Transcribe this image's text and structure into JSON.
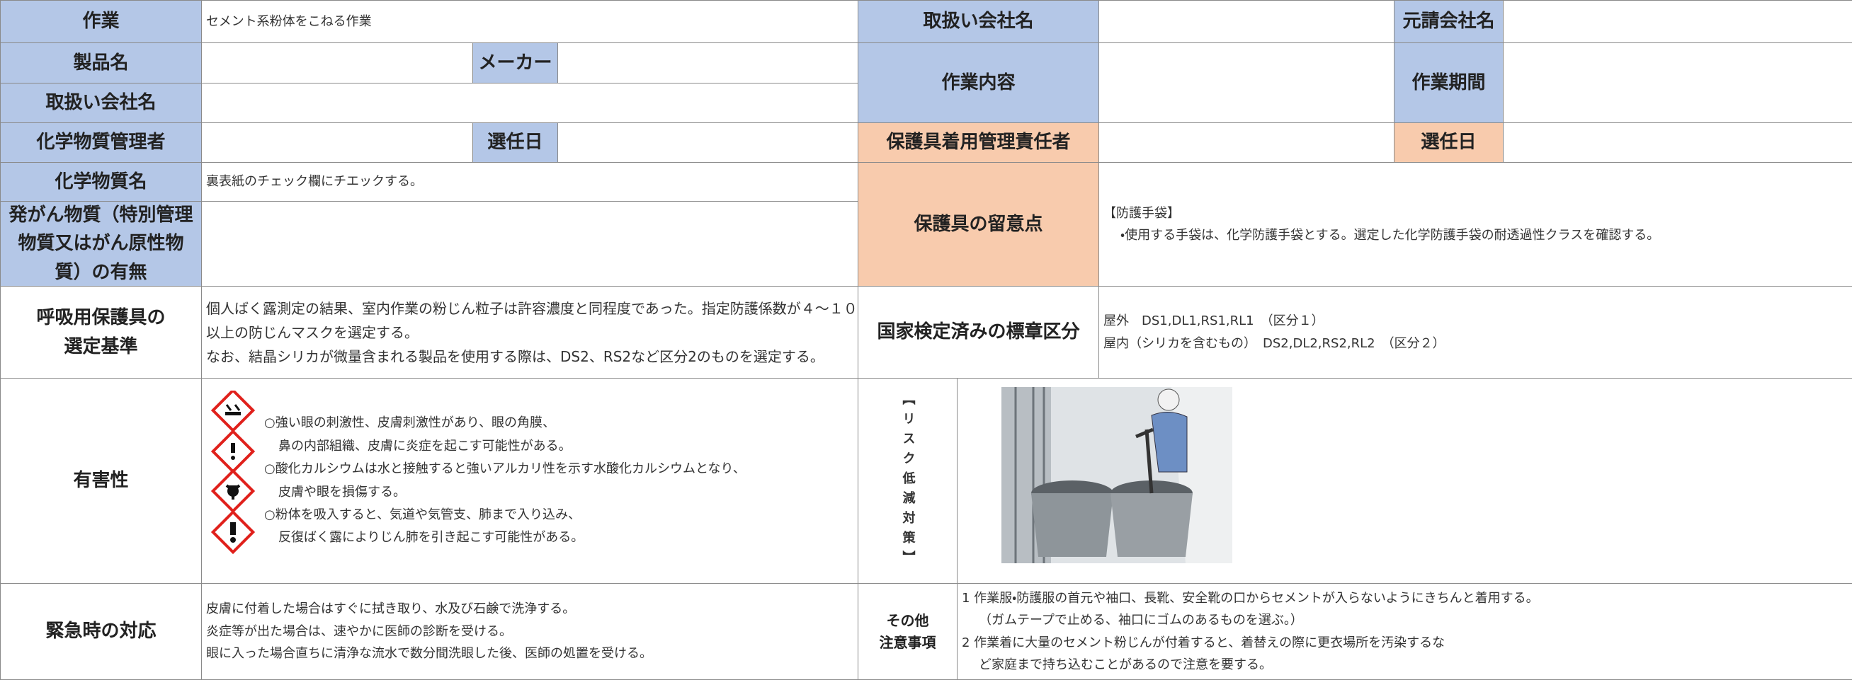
{
  "form": {
    "work": {
      "label": "作業",
      "value": "セメント系粉体をこねる作業"
    },
    "product": {
      "label": "製品名"
    },
    "maker": {
      "label": "メーカー"
    },
    "handling_company": {
      "label": "取扱い会社名"
    },
    "chem_manager": {
      "label": "化学物質管理者"
    },
    "appointment_date": {
      "label": "選任日"
    },
    "chem_name": {
      "label": "化学物質名",
      "value": "裏表紙のチェック欄にチエックする。"
    },
    "carcinogen": {
      "label": [
        "発がん物質（特別管理",
        "物質又はがん原性物",
        "質）の有無"
      ]
    },
    "respirator": {
      "label": [
        "呼吸用保護具の",
        "選定基準"
      ],
      "lines": [
        "個人ばく露測定の結果、室内作業の粉じん粒子は許容濃度と同程度であった。指定防護係数が４～１０",
        "以上の防じんマスクを選定する。",
        "なお、結晶シリカが微量含まれる製品を使用する際は、DS2、RS2など区分2のものを選定する。"
      ]
    },
    "hazard": {
      "label": "有害性",
      "lines": [
        "○強い眼の刺激性、皮膚刺激性があり、眼の角膜、",
        "鼻の内部組織、皮膚に炎症を起こす可能性がある。",
        "○酸化カルシウムは水と接触すると強いアルカリ性を示す水酸化カルシウムとなり、",
        "皮膚や眼を損傷する。",
        "○粉体を吸入すると、気道や気管支、肺まで入り込み、",
        "反復ばく露によりじん肺を引き起こす可能性がある。"
      ]
    },
    "emergency": {
      "label": "緊急時の対応",
      "lines": [
        "皮膚に付着した場合はすぐに拭き取り、水及び石鹸で洗浄する。",
        "炎症等が出た場合は、速やかに医師の診断を受ける。",
        "眼に入った場合直ちに清浄な流水で数分間洗眼した後、医師の処置を受ける。"
      ]
    },
    "r_handling_company": {
      "label": "取扱い会社名"
    },
    "prime_contractor": {
      "label": "元請会社名"
    },
    "work_content": {
      "label": "作業内容"
    },
    "work_period": {
      "label": "作業期間"
    },
    "ppe_manager": {
      "label": "保護具着用管理責任者"
    },
    "ppe_appointment_date": {
      "label": "選任日"
    },
    "ppe_notes": {
      "label": "保護具の留意点",
      "lines": [
        "【防護手袋】",
        "・使用する手袋は、化学防護手袋とする。選定した化学防護手袋の耐透過性クラスを確認する。"
      ]
    },
    "certification": {
      "label": "国家検定済みの標章区分",
      "lines": [
        "屋外　DS1,DL1,RS1,RL1　（区分１）",
        "屋内（シリカを含むもの）　DS2,DL2,RS2,RL2　（区分２）"
      ]
    },
    "risk_reduction": {
      "label": "【リスク低減対策】"
    },
    "other": {
      "label": [
        "その他",
        "注意事項"
      ],
      "lines": [
        "1 作業服・防護服の首元や袖口、長靴、安全靴の口からセメントが入らないようにきちんと着用する。",
        "（ガムテープで止める、袖口にゴムのあるものを選ぶ。）",
        "2 作業着に大量のセメント粉じんが付着すると、着替えの際に更衣場所を汚染するな",
        "ど家庭まで持ち込むことがあるので注意を要する。"
      ]
    }
  }
}
